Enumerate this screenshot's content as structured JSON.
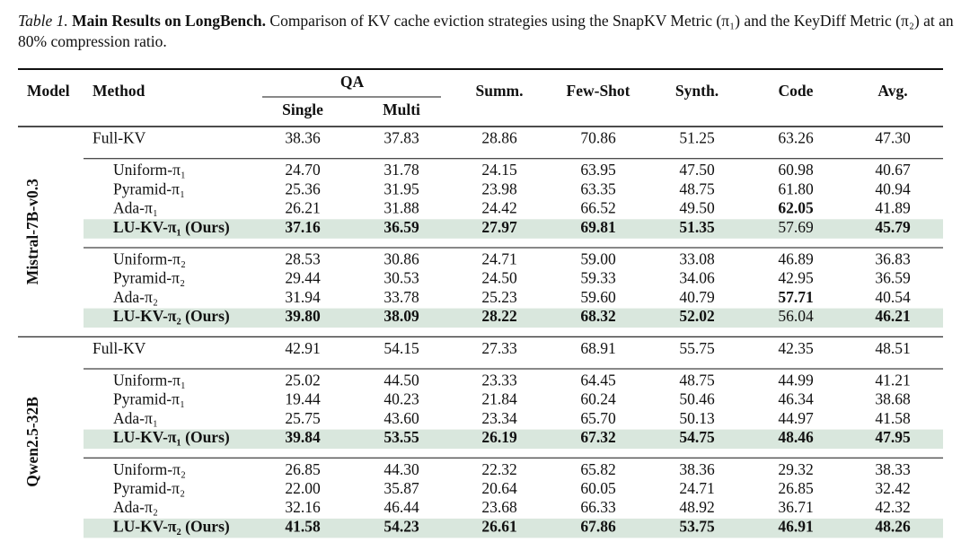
{
  "caption": {
    "label": "Table 1.",
    "title": "Main Results on LongBench.",
    "text": "Comparison of KV cache eviction strategies using the SnapKV Metric (π₁) and the KeyDiff Metric (π₂) at an 80% compression ratio."
  },
  "table": {
    "header": {
      "model": "Model",
      "method": "Method",
      "group": "QA",
      "subcolumns": [
        "Single",
        "Multi"
      ],
      "columns": [
        "Summ.",
        "Few-Shot",
        "Synth.",
        "Code",
        "Avg."
      ]
    },
    "models": [
      {
        "name": "Mistral-7B-v0.3",
        "blocks": [
          {
            "rows": [
              {
                "method": "Full-KV",
                "values": [
                  "38.36",
                  "37.83",
                  "28.86",
                  "70.86",
                  "51.25",
                  "63.26",
                  "47.30"
                ]
              }
            ]
          },
          {
            "rows": [
              {
                "method": "Uniform-π₁",
                "values": [
                  "24.70",
                  "31.78",
                  "24.15",
                  "63.95",
                  "47.50",
                  "60.98",
                  "40.67"
                ]
              },
              {
                "method": "Pyramid-π₁",
                "values": [
                  "25.36",
                  "31.95",
                  "23.98",
                  "63.35",
                  "48.75",
                  "61.80",
                  "40.94"
                ]
              },
              {
                "method": "Ada-π₁",
                "values": [
                  "26.21",
                  "31.88",
                  "24.42",
                  "66.52",
                  "49.50",
                  "62.05",
                  "41.89"
                ],
                "bold": [
                  5
                ]
              },
              {
                "method": "LU-KV-π₁ (Ours)",
                "values": [
                  "37.16",
                  "36.59",
                  "27.97",
                  "69.81",
                  "51.35",
                  "57.69",
                  "45.79"
                ],
                "bold": [
                  0,
                  1,
                  2,
                  3,
                  4,
                  6
                ],
                "highlight": true
              }
            ]
          },
          {
            "rows": [
              {
                "method": "Uniform-π₂",
                "values": [
                  "28.53",
                  "30.86",
                  "24.71",
                  "59.00",
                  "33.08",
                  "46.89",
                  "36.83"
                ]
              },
              {
                "method": "Pyramid-π₂",
                "values": [
                  "29.44",
                  "30.53",
                  "24.50",
                  "59.33",
                  "34.06",
                  "42.95",
                  "36.59"
                ]
              },
              {
                "method": "Ada-π₂",
                "values": [
                  "31.94",
                  "33.78",
                  "25.23",
                  "59.60",
                  "40.79",
                  "57.71",
                  "40.54"
                ],
                "bold": [
                  5
                ]
              },
              {
                "method": "LU-KV-π₂ (Ours)",
                "values": [
                  "39.80",
                  "38.09",
                  "28.22",
                  "68.32",
                  "52.02",
                  "56.04",
                  "46.21"
                ],
                "bold": [
                  0,
                  1,
                  2,
                  3,
                  4,
                  6
                ],
                "highlight": true
              }
            ]
          }
        ]
      },
      {
        "name": "Qwen2.5-32B",
        "blocks": [
          {
            "rows": [
              {
                "method": "Full-KV",
                "values": [
                  "42.91",
                  "54.15",
                  "27.33",
                  "68.91",
                  "55.75",
                  "42.35",
                  "48.51"
                ]
              }
            ]
          },
          {
            "rows": [
              {
                "method": "Uniform-π₁",
                "values": [
                  "25.02",
                  "44.50",
                  "23.33",
                  "64.45",
                  "48.75",
                  "44.99",
                  "41.21"
                ]
              },
              {
                "method": "Pyramid-π₁",
                "values": [
                  "19.44",
                  "40.23",
                  "21.84",
                  "60.24",
                  "50.46",
                  "46.34",
                  "38.68"
                ]
              },
              {
                "method": "Ada-π₁",
                "values": [
                  "25.75",
                  "43.60",
                  "23.34",
                  "65.70",
                  "50.13",
                  "44.97",
                  "41.58"
                ]
              },
              {
                "method": "LU-KV-π₁ (Ours)",
                "values": [
                  "39.84",
                  "53.55",
                  "26.19",
                  "67.32",
                  "54.75",
                  "48.46",
                  "47.95"
                ],
                "bold": [
                  0,
                  1,
                  2,
                  3,
                  4,
                  5,
                  6
                ],
                "highlight": true
              }
            ]
          },
          {
            "rows": [
              {
                "method": "Uniform-π₂",
                "values": [
                  "26.85",
                  "44.30",
                  "22.32",
                  "65.82",
                  "38.36",
                  "29.32",
                  "38.33"
                ]
              },
              {
                "method": "Pyramid-π₂",
                "values": [
                  "22.00",
                  "35.87",
                  "20.64",
                  "60.05",
                  "24.71",
                  "26.85",
                  "32.42"
                ]
              },
              {
                "method": "Ada-π₂",
                "values": [
                  "32.16",
                  "46.44",
                  "23.68",
                  "66.33",
                  "48.92",
                  "36.71",
                  "42.32"
                ]
              },
              {
                "method": "LU-KV-π₂ (Ours)",
                "values": [
                  "41.58",
                  "54.23",
                  "26.61",
                  "67.86",
                  "53.75",
                  "46.91",
                  "48.26"
                ],
                "bold": [
                  0,
                  1,
                  2,
                  3,
                  4,
                  5,
                  6
                ],
                "highlight": true
              }
            ]
          }
        ]
      }
    ]
  }
}
